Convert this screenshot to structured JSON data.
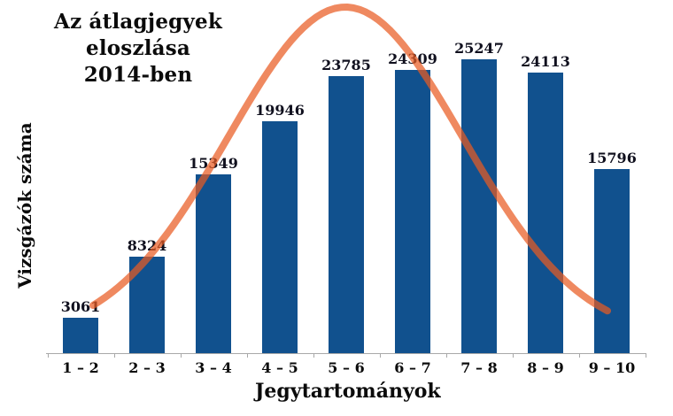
{
  "header": {
    "line1": "Az átlagjegyek eloszlása",
    "line2": "2014-ben"
  },
  "axes": {
    "ylabel": "Vizsgázók száma",
    "xlabel": "Jegytartományok"
  },
  "chart_data": {
    "type": "bar",
    "title": "Az átlagjegyek eloszlása 2014-ben",
    "categories": [
      "1 – 2",
      "2 – 3",
      "3 – 4",
      "4 – 5",
      "5 – 6",
      "6 – 7",
      "7 – 8",
      "8 – 9",
      "9 – 10"
    ],
    "values": [
      3061,
      8324,
      15349,
      19946,
      23785,
      24309,
      25247,
      24113,
      15796
    ],
    "value_labels_shown": true,
    "xlabel": "Jegytartományok",
    "ylabel": "Vizsgázók száma",
    "ylim": [
      0,
      26000
    ],
    "grid": false,
    "legend": "none",
    "bar_color": "#11518E",
    "axis_color": "#A8A8A8",
    "text_color": "#0B0B0B",
    "overlay_curve": {
      "type": "bell",
      "description": "normal-distribution fit over bars",
      "color_rgba": "rgba(233,91,35,0.72)"
    }
  }
}
